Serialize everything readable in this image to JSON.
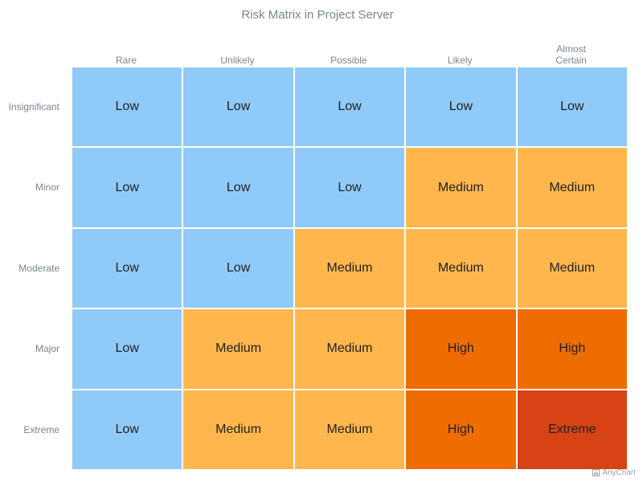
{
  "chart_data": {
    "type": "heatmap",
    "title": "Risk Matrix in Project Server",
    "columns": [
      "Rare",
      "Unlikely",
      "Possible",
      "Likely",
      "Almost\nCertain"
    ],
    "rows": [
      "Insignificant",
      "Minor",
      "Moderate",
      "Major",
      "Extreme"
    ],
    "cells": [
      [
        "Low",
        "Low",
        "Low",
        "Low",
        "Low"
      ],
      [
        "Low",
        "Low",
        "Low",
        "Medium",
        "Medium"
      ],
      [
        "Low",
        "Low",
        "Medium",
        "Medium",
        "Medium"
      ],
      [
        "Low",
        "Medium",
        "Medium",
        "High",
        "High"
      ],
      [
        "Low",
        "Medium",
        "Medium",
        "High",
        "Extreme"
      ]
    ],
    "level_colors": {
      "Low": "#90caf9",
      "Medium": "#ffb74d",
      "High": "#ef6c00",
      "Extreme": "#d84315"
    },
    "grid": false,
    "legend": "none"
  },
  "credits": {
    "label": "AnyChart"
  }
}
